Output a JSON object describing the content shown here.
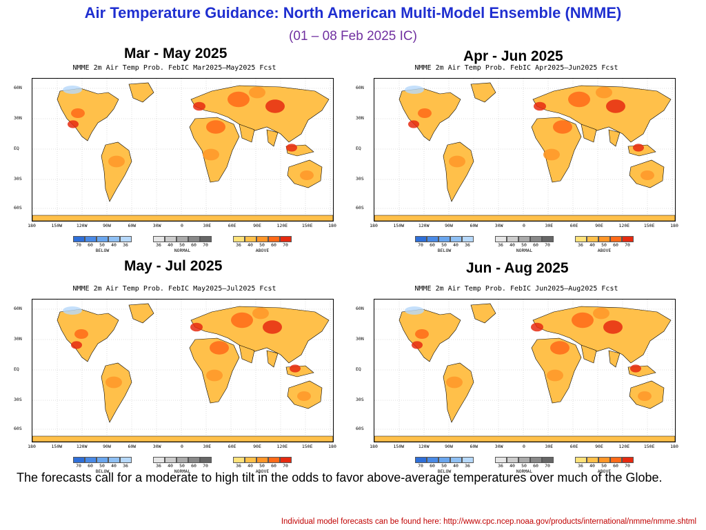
{
  "header": {
    "title": "Air Temperature Guidance:  North American Multi-Model Ensemble (NMME)",
    "subtitle": "(01 – 08 Feb 2025 IC)"
  },
  "panels": [
    {
      "period": "Mar - May 2025",
      "map_title": "NMME 2m Air Temp Prob. FebIC  Mar2025–May2025 Fcst"
    },
    {
      "period": "Apr - Jun 2025",
      "map_title": "NMME 2m Air Temp Prob. FebIC  Apr2025–Jun2025 Fcst"
    },
    {
      "period": "May - Jul 2025",
      "map_title": "NMME 2m Air Temp Prob. FebIC  May2025–Jul2025 Fcst"
    },
    {
      "period": "Jun - Aug 2025",
      "map_title": "NMME 2m Air Temp Prob. FebIC  Jun2025–Aug2025 Fcst"
    }
  ],
  "axes": {
    "lat_labels": [
      "60N",
      "30N",
      "EQ",
      "30S",
      "60S"
    ],
    "lon_labels": [
      "180",
      "150W",
      "120W",
      "90W",
      "60W",
      "30W",
      "0",
      "30E",
      "60E",
      "90E",
      "120E",
      "150E",
      "180"
    ]
  },
  "legend": {
    "below": {
      "name": "BELOW",
      "ticks": [
        "70",
        "60",
        "50",
        "40",
        "36"
      ],
      "colors": [
        "#2f6fd8",
        "#4a8ae6",
        "#6aa6ee",
        "#8fc0f4",
        "#b6d8fa"
      ]
    },
    "normal": {
      "name": "NORMAL",
      "ticks": [
        "36",
        "40",
        "50",
        "60",
        "70"
      ],
      "colors": [
        "#e6e6e6",
        "#cccccc",
        "#aaaaaa",
        "#888888",
        "#666666"
      ]
    },
    "above": {
      "name": "ABOVE",
      "ticks": [
        "36",
        "40",
        "50",
        "60",
        "70"
      ],
      "colors": [
        "#ffe27a",
        "#ffc04a",
        "#ff9628",
        "#ff6a18",
        "#e62a10"
      ]
    }
  },
  "body_text": "The forecasts call for a moderate to high tilt in the odds to favor above-average temperatures over much of the Globe.",
  "footer": "Individual model forecasts can be found here: http://www.cpc.ncep.noaa.gov/products/international/nmme/nmme.shtml"
}
